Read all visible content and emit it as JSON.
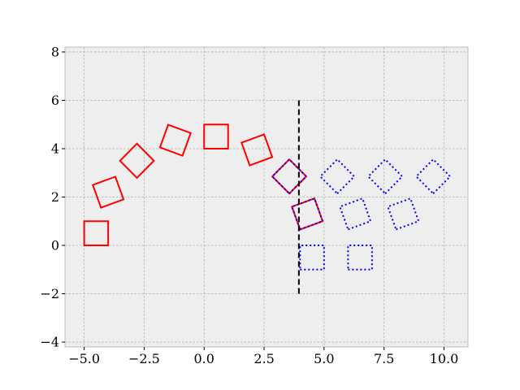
{
  "chart_data": {
    "type": "scatter",
    "title": "",
    "xlabel": "",
    "ylabel": "",
    "xlim": [
      -5.8,
      11.0
    ],
    "ylim": [
      -4.2,
      8.2
    ],
    "x_ticks": [
      -5.0,
      -2.5,
      0.0,
      2.5,
      5.0,
      7.5,
      10.0
    ],
    "x_tick_labels": [
      "−5.0",
      "−2.5",
      "0.0",
      "2.5",
      "5.0",
      "7.5",
      "10.0"
    ],
    "y_ticks": [
      -4,
      -2,
      0,
      2,
      4,
      6,
      8
    ],
    "y_tick_labels": [
      "−4",
      "−2",
      "0",
      "2",
      "4",
      "6",
      "8"
    ],
    "grid": true,
    "vline": {
      "x": 3.95,
      "y_range": [
        -2,
        6
      ],
      "style": "dashed",
      "color": "#000000"
    },
    "series": [
      {
        "style": "solid",
        "color": "#ff0000",
        "squares": [
          {
            "center": [
              -4.5,
              0.5
            ],
            "side": 1.0,
            "rotation": 0
          },
          {
            "center": [
              -4.0,
              2.2
            ],
            "side": 1.0,
            "rotation": 20
          },
          {
            "center": [
              -2.8,
              3.5
            ],
            "side": 1.0,
            "rotation": 45
          },
          {
            "center": [
              -1.2,
              4.35
            ],
            "side": 1.0,
            "rotation": 70
          },
          {
            "center": [
              0.5,
              4.5
            ],
            "side": 1.0,
            "rotation": 0
          },
          {
            "center": [
              2.2,
              3.95
            ],
            "side": 1.0,
            "rotation": 20
          },
          {
            "center": [
              3.55,
              2.85
            ],
            "side": 1.0,
            "rotation": 45
          },
          {
            "center": [
              4.3,
              1.3
            ],
            "side": 1.0,
            "rotation": 20
          }
        ]
      },
      {
        "style": "dotted",
        "color": "#0000ff",
        "squares": [
          {
            "center": [
              3.55,
              2.85
            ],
            "side": 1.0,
            "rotation": 45
          },
          {
            "center": [
              4.3,
              1.3
            ],
            "side": 1.0,
            "rotation": 20
          },
          {
            "center": [
              4.5,
              -0.5
            ],
            "side": 1.0,
            "rotation": 0
          },
          {
            "center": [
              5.55,
              2.85
            ],
            "side": 1.0,
            "rotation": 45
          },
          {
            "center": [
              6.3,
              1.3
            ],
            "side": 1.0,
            "rotation": 20
          },
          {
            "center": [
              6.5,
              -0.5
            ],
            "side": 1.0,
            "rotation": 0
          },
          {
            "center": [
              7.55,
              2.85
            ],
            "side": 1.0,
            "rotation": 45
          },
          {
            "center": [
              8.3,
              1.3
            ],
            "side": 1.0,
            "rotation": 20
          },
          {
            "center": [
              9.55,
              2.85
            ],
            "side": 1.0,
            "rotation": 45
          }
        ]
      }
    ]
  },
  "colors": {
    "plot_background": "#eeeeee",
    "grid": "#b0b0b0",
    "axes_edge": "#bcbcbc"
  }
}
